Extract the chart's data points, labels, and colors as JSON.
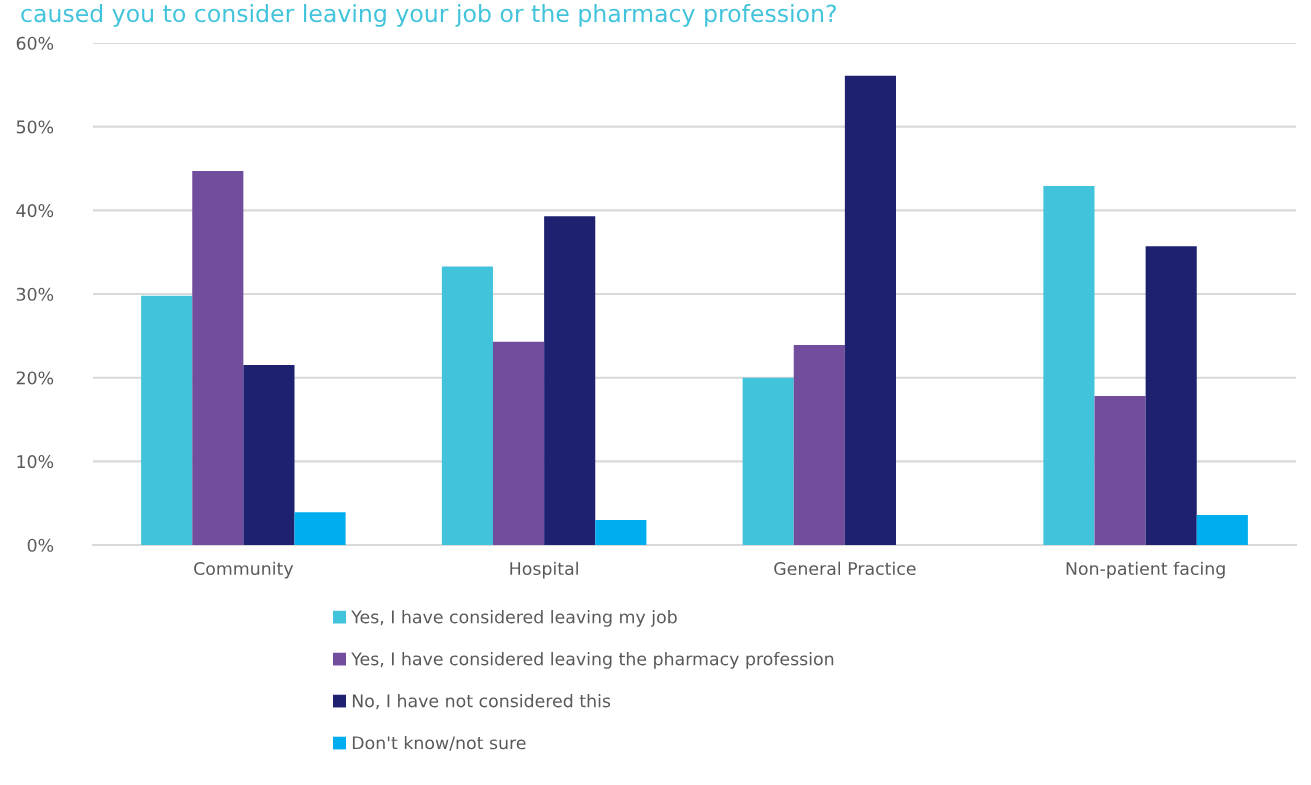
{
  "chart_data": {
    "type": "bar",
    "title": "caused you to consider leaving your job or the pharmacy profession?",
    "categories": [
      "Community",
      "Hospital",
      "General Practice",
      "Non-patient facing"
    ],
    "series": [
      {
        "name": "Yes, I have considered leaving my job",
        "color": "#42c3dc",
        "values": [
          29.8,
          33.3,
          20.0,
          42.9
        ]
      },
      {
        "name": "Yes, I have considered leaving the pharmacy profession",
        "color": "#724d9d",
        "values": [
          44.7,
          24.3,
          23.9,
          17.8
        ]
      },
      {
        "name": "No, I have not considered this",
        "color": "#1e2070",
        "values": [
          21.5,
          39.3,
          56.1,
          35.7
        ]
      },
      {
        "name": "Don't know/not sure",
        "color": "#00adee",
        "values": [
          3.9,
          3.0,
          null,
          3.6
        ]
      }
    ],
    "ylim": [
      0,
      60
    ],
    "yticks": [
      {
        "value": 0,
        "label": "0%"
      },
      {
        "value": 10,
        "label": "10%"
      },
      {
        "value": 20,
        "label": "20%"
      },
      {
        "value": 30,
        "label": "30%"
      },
      {
        "value": 40,
        "label": "40%"
      },
      {
        "value": 50,
        "label": "50%"
      },
      {
        "value": 60,
        "label": "60%"
      }
    ],
    "grid": "y",
    "legend": "bottom"
  }
}
